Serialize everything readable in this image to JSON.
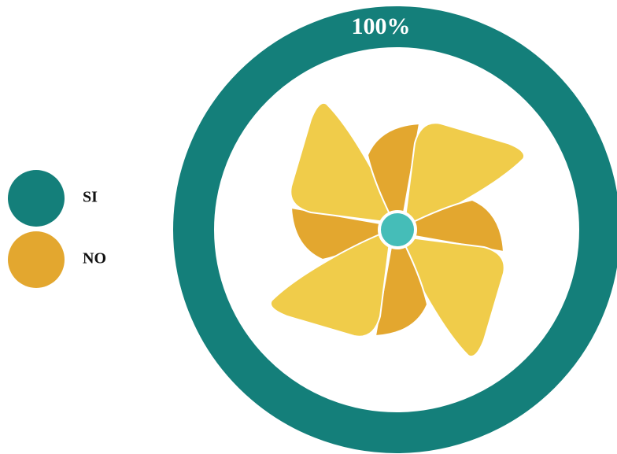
{
  "chart_data": {
    "type": "pie",
    "categories": [
      "SI",
      "NO"
    ],
    "series": [
      {
        "name": "SI",
        "color": "#147f7a"
      },
      {
        "name": "NO",
        "color": "#e3a72f"
      }
    ],
    "values": [
      100,
      0
    ],
    "value_labels": [
      "100%",
      null
    ]
  }
}
